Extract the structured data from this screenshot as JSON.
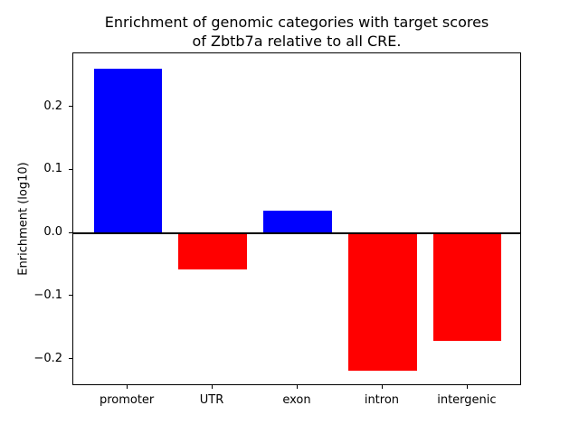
{
  "figure": {
    "title_line1": "Enrichment of genomic categories with target scores",
    "title_line2": "of Zbtb7a relative to all CRE.",
    "ylabel": "Enrichment (log10)"
  },
  "chart_data": {
    "type": "bar",
    "title": "Enrichment of genomic categories with target scores\nof Zbtb7a relative to all CRE.",
    "xlabel": "",
    "ylabel": "Enrichment (log10)",
    "categories": [
      "promoter",
      "UTR",
      "exon",
      "intron",
      "intergenic"
    ],
    "values": [
      0.261,
      -0.058,
      0.036,
      -0.219,
      -0.171
    ],
    "bar_colors": [
      "#0000ff",
      "#ff0000",
      "#0000ff",
      "#ff0000",
      "#ff0000"
    ],
    "positive_color": "#0000ff",
    "negative_color": "#ff0000",
    "axis_color": "#000000",
    "background_color": "#ffffff",
    "xlim": [
      -0.64,
      4.64
    ],
    "ylim": [
      -0.243,
      0.285
    ],
    "bar_width": 0.8,
    "yticks": [
      0.2,
      0.1,
      0.0,
      -0.1,
      -0.2
    ],
    "ytick_labels": [
      "0.2",
      "0.1",
      "0.0",
      "−0.1",
      "−0.2"
    ],
    "zero_line_at": 0,
    "grid": false,
    "legend": false
  }
}
